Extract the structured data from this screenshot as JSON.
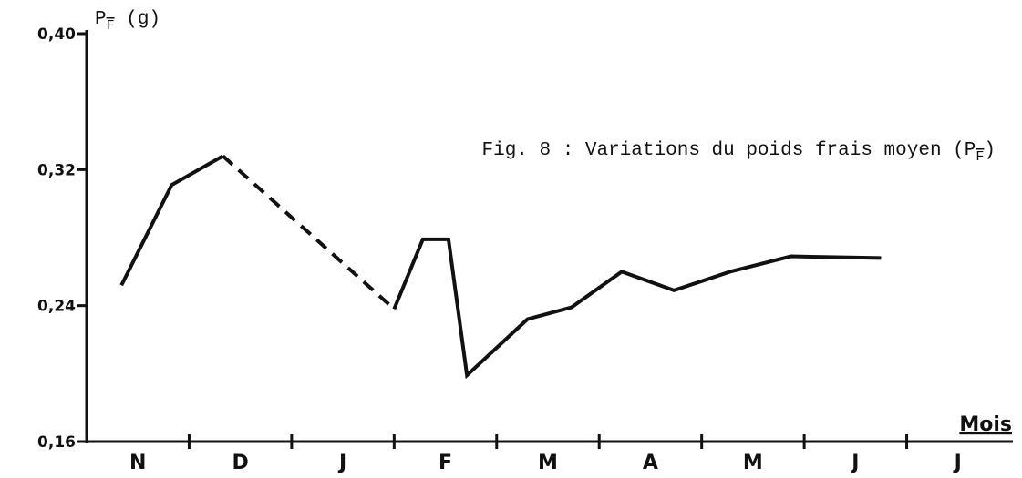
{
  "chart_data": {
    "type": "line",
    "title_parts": [
      "Fig. 8 : Variations du poids frais moyen (P",
      "F",
      ")"
    ],
    "ylabel_parts": [
      "P",
      "F",
      " (g)"
    ],
    "xlabel": "Mois",
    "categories": [
      "N",
      "D",
      "J",
      "F",
      "M",
      "A",
      "M",
      "J",
      "J"
    ],
    "xlim": [
      0,
      9
    ],
    "xticks": [
      1,
      2,
      3,
      4,
      5,
      6,
      7,
      8
    ],
    "ylim": [
      0.16,
      0.4
    ],
    "yticks": [
      {
        "value": 0.16,
        "label": "0,16"
      },
      {
        "value": 0.24,
        "label": "0,24"
      },
      {
        "value": 0.32,
        "label": "0,32"
      },
      {
        "value": 0.4,
        "label": "0,40"
      }
    ],
    "grid": false,
    "color": "#111111",
    "dashed_segments": [
      2
    ],
    "x": [
      0.34,
      0.83,
      1.33,
      3.0,
      3.28,
      3.53,
      3.71,
      4.3,
      4.73,
      5.22,
      5.73,
      6.28,
      6.87,
      7.75
    ],
    "values": [
      0.252,
      0.311,
      0.328,
      0.238,
      0.279,
      0.279,
      0.199,
      0.232,
      0.239,
      0.26,
      0.249,
      0.26,
      0.269,
      0.268
    ]
  }
}
